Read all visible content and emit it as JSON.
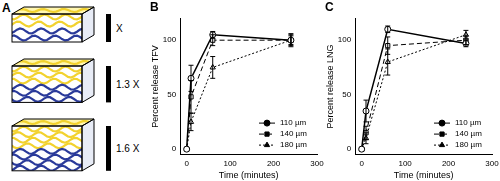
{
  "diagram": {
    "title": "A",
    "boxes": [
      {
        "label": "X",
        "value": 1
      },
      {
        "label": "1.3 X",
        "value": 1.3
      },
      {
        "label": "1.6 X",
        "value": 1.6
      }
    ]
  },
  "chart_data": [
    {
      "type": "line",
      "title": "B",
      "x_label": "Time (minutes)",
      "y_label": "Percent release TFV",
      "xlim": [
        -15,
        300
      ],
      "xticks": [
        0,
        100,
        200,
        300
      ],
      "ylim": [
        -5,
        120
      ],
      "yticks": [
        0,
        50,
        100
      ],
      "legend": "lower right",
      "x": [
        0,
        10,
        60,
        240
      ],
      "series": [
        {
          "name": "110 µm",
          "color": "#000000",
          "marker": "circle",
          "line_style": "solid",
          "values": [
            0,
            65,
            105,
            100
          ],
          "errors": [
            0,
            12,
            3,
            5
          ]
        },
        {
          "name": "140 µm",
          "color": "#000000",
          "marker": "square",
          "line_style": "dashed",
          "values": [
            0,
            48,
            100,
            100
          ],
          "errors": [
            0,
            15,
            5,
            4
          ]
        },
        {
          "name": "180 µm",
          "color": "#000000",
          "marker": "triangle",
          "line_style": "dotted",
          "values": [
            0,
            25,
            75,
            100
          ],
          "errors": [
            0,
            8,
            10,
            6
          ]
        }
      ]
    },
    {
      "type": "line",
      "title": "C",
      "x_label": "Time (minutes)",
      "y_label": "Percent release LNG",
      "xlim": [
        -15,
        300
      ],
      "xticks": [
        0,
        100,
        200,
        300
      ],
      "ylim": [
        -5,
        120
      ],
      "yticks": [
        0,
        50,
        100
      ],
      "legend": "lower right",
      "x": [
        0,
        10,
        60,
        240
      ],
      "series": [
        {
          "name": "110 µm",
          "color": "#000000",
          "marker": "circle",
          "line_style": "solid",
          "values": [
            0,
            35,
            110,
            97
          ],
          "errors": [
            0,
            10,
            3,
            3
          ]
        },
        {
          "name": "140 µm",
          "color": "#000000",
          "marker": "square",
          "line_style": "dashed",
          "values": [
            0,
            15,
            95,
            100
          ],
          "errors": [
            0,
            6,
            8,
            4
          ]
        },
        {
          "name": "180 µm",
          "color": "#000000",
          "marker": "triangle",
          "line_style": "dotted",
          "values": [
            0,
            10,
            80,
            105
          ],
          "errors": [
            0,
            5,
            12,
            4
          ]
        }
      ]
    }
  ]
}
